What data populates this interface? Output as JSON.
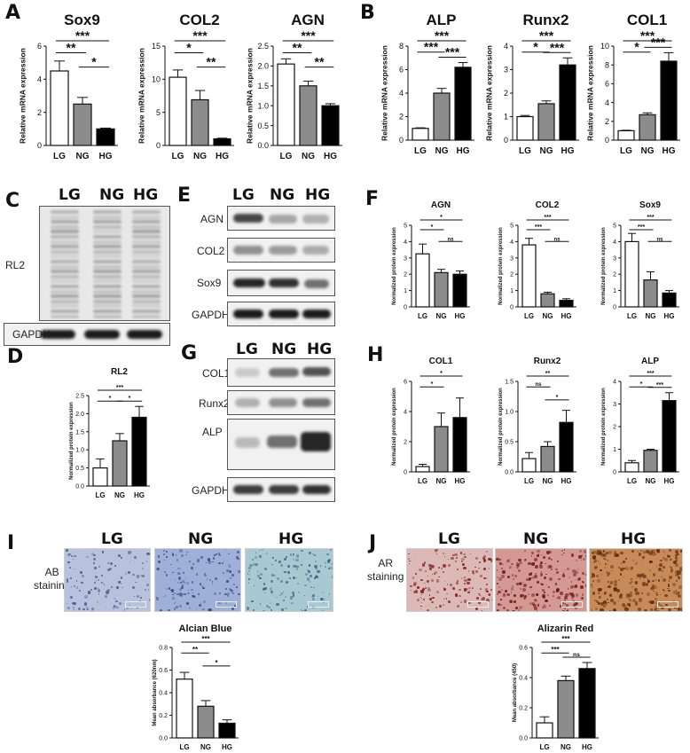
{
  "panel_labels": [
    "A",
    "B",
    "C",
    "D",
    "E",
    "F",
    "G",
    "H",
    "I",
    "J"
  ],
  "groups": [
    "LG",
    "NG",
    "HG"
  ],
  "bar_colors": [
    "#ffffff",
    "#8c8c8c",
    "#000000"
  ],
  "blot": {
    "c_row": "RL2",
    "c_loading": "GAPDH",
    "e_rows": [
      "AGN",
      "COL2",
      "Sox9",
      "GAPDH"
    ],
    "g_rows": [
      "COL1",
      "Runx2",
      "ALP",
      "GAPDH"
    ]
  },
  "staining": {
    "i_label": "AB\nstaining",
    "j_label": "AR\nstaining",
    "ab_colors": [
      "#b9c2dd",
      "#9fb0d8",
      "#a9c9d2"
    ],
    "ar_colors": [
      "#dcb9b6",
      "#d49993",
      "#c98a5a"
    ]
  },
  "chart_data": [
    {
      "id": "sox9_mrna",
      "type": "bar",
      "title": "Sox9",
      "ylabel": "Relative mRNA expression",
      "categories": [
        "LG",
        "NG",
        "HG"
      ],
      "values": [
        4.5,
        2.5,
        1.0
      ],
      "errors": [
        0.6,
        0.4,
        0.05
      ],
      "ylim": [
        0,
        6
      ],
      "yticks": [
        "0",
        "2",
        "4",
        "6"
      ],
      "sig": [
        {
          "a": 0,
          "b": 2,
          "t": "***"
        },
        {
          "a": 0,
          "b": 1,
          "t": "**"
        },
        {
          "a": 1,
          "b": 2,
          "t": "*"
        }
      ]
    },
    {
      "id": "col2_mrna",
      "type": "bar",
      "title": "COL2",
      "ylabel": "Relative mRNA expression",
      "categories": [
        "LG",
        "NG",
        "HG"
      ],
      "values": [
        10.3,
        6.9,
        1.0
      ],
      "errors": [
        1.1,
        1.4,
        0.1
      ],
      "ylim": [
        0,
        15
      ],
      "yticks": [
        "0",
        "5",
        "10",
        "15"
      ],
      "sig": [
        {
          "a": 0,
          "b": 2,
          "t": "***"
        },
        {
          "a": 0,
          "b": 1,
          "t": "*"
        },
        {
          "a": 1,
          "b": 2,
          "t": "**"
        }
      ]
    },
    {
      "id": "agn_mrna",
      "type": "bar",
      "title": "AGN",
      "ylabel": "Relative mRNA expression",
      "categories": [
        "LG",
        "NG",
        "HG"
      ],
      "values": [
        2.05,
        1.5,
        1.0
      ],
      "errors": [
        0.13,
        0.12,
        0.05
      ],
      "ylim": [
        0,
        2.5
      ],
      "yticks": [
        "0.0",
        "0.5",
        "1.0",
        "1.5",
        "2.0",
        "2.5"
      ],
      "sig": [
        {
          "a": 0,
          "b": 2,
          "t": "***"
        },
        {
          "a": 0,
          "b": 1,
          "t": "**"
        },
        {
          "a": 1,
          "b": 2,
          "t": "**"
        }
      ]
    },
    {
      "id": "alp_mrna",
      "type": "bar",
      "title": "ALP",
      "ylabel": "Relative mRNA expression",
      "categories": [
        "LG",
        "NG",
        "HG"
      ],
      "values": [
        1.0,
        4.0,
        6.2
      ],
      "errors": [
        0.05,
        0.4,
        0.4
      ],
      "ylim": [
        0,
        8
      ],
      "yticks": [
        "0",
        "2",
        "4",
        "6",
        "8"
      ],
      "sig": [
        {
          "a": 0,
          "b": 2,
          "t": "***"
        },
        {
          "a": 1,
          "b": 2,
          "t": "***"
        },
        {
          "a": 0,
          "b": 1,
          "t": "***"
        }
      ]
    },
    {
      "id": "runx2_mrna",
      "type": "bar",
      "title": "Runx2",
      "ylabel": "Relative mRNA expression",
      "categories": [
        "LG",
        "NG",
        "HG"
      ],
      "values": [
        1.0,
        1.55,
        3.2
      ],
      "errors": [
        0.05,
        0.12,
        0.3
      ],
      "ylim": [
        0,
        4
      ],
      "yticks": [
        "0",
        "1",
        "2",
        "3",
        "4"
      ],
      "sig": [
        {
          "a": 0,
          "b": 2,
          "t": "***"
        },
        {
          "a": 1,
          "b": 2,
          "t": "***"
        },
        {
          "a": 0,
          "b": 1,
          "t": "*"
        }
      ]
    },
    {
      "id": "col1_mrna",
      "type": "bar",
      "title": "COL1",
      "ylabel": "Relative mRNA expression",
      "categories": [
        "LG",
        "NG",
        "HG"
      ],
      "values": [
        1.0,
        2.7,
        8.4
      ],
      "errors": [
        0.05,
        0.2,
        0.9
      ],
      "ylim": [
        0,
        10
      ],
      "yticks": [
        "0",
        "2",
        "4",
        "6",
        "8",
        "10"
      ],
      "sig": [
        {
          "a": 0,
          "b": 2,
          "t": "***"
        },
        {
          "a": 1,
          "b": 2,
          "t": "***"
        },
        {
          "a": 0,
          "b": 1,
          "t": "*"
        }
      ]
    },
    {
      "id": "rl2_prot",
      "type": "bar",
      "title": "RL2",
      "ylabel": "Normalized protein expression",
      "categories": [
        "LG",
        "NG",
        "HG"
      ],
      "values": [
        0.5,
        1.25,
        1.9
      ],
      "errors": [
        0.25,
        0.2,
        0.3
      ],
      "ylim": [
        0,
        2.5
      ],
      "yticks": [
        "0.0",
        "0.5",
        "1.0",
        "1.5",
        "2.0",
        "2.5"
      ],
      "sig": [
        {
          "a": 0,
          "b": 2,
          "t": "***"
        },
        {
          "a": 1,
          "b": 2,
          "t": "*"
        },
        {
          "a": 0,
          "b": 1,
          "t": "*"
        }
      ]
    },
    {
      "id": "agn_prot",
      "type": "bar",
      "title": "AGN",
      "ylabel": "Normalized protein expression",
      "categories": [
        "LG",
        "NG",
        "HG"
      ],
      "values": [
        3.25,
        2.1,
        2.0
      ],
      "errors": [
        0.6,
        0.2,
        0.2
      ],
      "ylim": [
        0,
        5
      ],
      "yticks": [
        "0",
        "1",
        "2",
        "3",
        "4",
        "5"
      ],
      "sig": [
        {
          "a": 0,
          "b": 2,
          "t": "*"
        },
        {
          "a": 0,
          "b": 1,
          "t": "*"
        },
        {
          "a": 1,
          "b": 2,
          "t": "ns"
        }
      ]
    },
    {
      "id": "col2_prot",
      "type": "bar",
      "title": "COL2",
      "ylabel": "Normalized protein expression",
      "categories": [
        "LG",
        "NG",
        "HG"
      ],
      "values": [
        3.8,
        0.8,
        0.4
      ],
      "errors": [
        0.4,
        0.1,
        0.1
      ],
      "ylim": [
        0,
        5
      ],
      "yticks": [
        "0",
        "1",
        "2",
        "3",
        "4",
        "5"
      ],
      "sig": [
        {
          "a": 0,
          "b": 2,
          "t": "***"
        },
        {
          "a": 0,
          "b": 1,
          "t": "***"
        },
        {
          "a": 1,
          "b": 2,
          "t": "ns"
        }
      ]
    },
    {
      "id": "sox9_prot",
      "type": "bar",
      "title": "Sox9",
      "ylabel": "Normalized protein expression",
      "categories": [
        "LG",
        "NG",
        "HG"
      ],
      "values": [
        4.0,
        1.65,
        0.85
      ],
      "errors": [
        0.5,
        0.5,
        0.15
      ],
      "ylim": [
        0,
        5
      ],
      "yticks": [
        "0",
        "1",
        "2",
        "3",
        "4",
        "5"
      ],
      "sig": [
        {
          "a": 0,
          "b": 2,
          "t": "***"
        },
        {
          "a": 0,
          "b": 1,
          "t": "***"
        },
        {
          "a": 1,
          "b": 2,
          "t": "ns"
        }
      ]
    },
    {
      "id": "col1_prot",
      "type": "bar",
      "title": "COL1",
      "ylabel": "Normalized protein expression",
      "categories": [
        "LG",
        "NG",
        "HG"
      ],
      "values": [
        0.35,
        3.0,
        3.6
      ],
      "errors": [
        0.15,
        0.9,
        1.3
      ],
      "ylim": [
        0,
        6
      ],
      "yticks": [
        "0",
        "2",
        "4",
        "6"
      ],
      "sig": [
        {
          "a": 0,
          "b": 2,
          "t": "*"
        },
        {
          "a": 0,
          "b": 1,
          "t": "*"
        }
      ]
    },
    {
      "id": "runx2_prot",
      "type": "bar",
      "title": "Runx2",
      "ylabel": "Normalized protein expression",
      "categories": [
        "LG",
        "NG",
        "HG"
      ],
      "values": [
        0.22,
        0.42,
        0.82
      ],
      "errors": [
        0.1,
        0.08,
        0.2
      ],
      "ylim": [
        0,
        1.5
      ],
      "yticks": [
        "0.0",
        "0.5",
        "1.0",
        "1.5"
      ],
      "sig": [
        {
          "a": 0,
          "b": 2,
          "t": "**"
        },
        {
          "a": 1,
          "b": 2,
          "t": "*"
        },
        {
          "a": 0,
          "b": 1,
          "t": "ns"
        }
      ]
    },
    {
      "id": "alp_prot",
      "type": "bar",
      "title": "ALP",
      "ylabel": "Normalized protein expression",
      "categories": [
        "LG",
        "NG",
        "HG"
      ],
      "values": [
        0.4,
        0.95,
        3.15
      ],
      "errors": [
        0.1,
        0.05,
        0.35
      ],
      "ylim": [
        0,
        4
      ],
      "yticks": [
        "0",
        "1",
        "2",
        "3",
        "4"
      ],
      "sig": [
        {
          "a": 0,
          "b": 2,
          "t": "***"
        },
        {
          "a": 1,
          "b": 2,
          "t": "***"
        },
        {
          "a": 0,
          "b": 1,
          "t": "*"
        }
      ]
    },
    {
      "id": "alcian",
      "type": "bar",
      "title": "Alcian Blue",
      "ylabel": "Mean absorbance (620nm)",
      "categories": [
        "LG",
        "NG",
        "HG"
      ],
      "values": [
        0.52,
        0.28,
        0.13
      ],
      "errors": [
        0.06,
        0.05,
        0.03
      ],
      "ylim": [
        0,
        0.8
      ],
      "yticks": [
        "0.0",
        "0.2",
        "0.4",
        "0.6",
        "0.8"
      ],
      "sig": [
        {
          "a": 0,
          "b": 2,
          "t": "***"
        },
        {
          "a": 0,
          "b": 1,
          "t": "**"
        },
        {
          "a": 1,
          "b": 2,
          "t": "*"
        }
      ]
    },
    {
      "id": "alizarin",
      "type": "bar",
      "title": "Alizarin Red",
      "ylabel": "Mean absorbance (450)",
      "categories": [
        "LG",
        "NG",
        "HG"
      ],
      "values": [
        0.1,
        0.38,
        0.46
      ],
      "errors": [
        0.04,
        0.03,
        0.04
      ],
      "ylim": [
        0,
        0.6
      ],
      "yticks": [
        "0.0",
        "0.2",
        "0.4",
        "0.6"
      ],
      "sig": [
        {
          "a": 0,
          "b": 2,
          "t": "***"
        },
        {
          "a": 0,
          "b": 1,
          "t": "***"
        },
        {
          "a": 1,
          "b": 2,
          "t": "ns"
        }
      ]
    }
  ]
}
